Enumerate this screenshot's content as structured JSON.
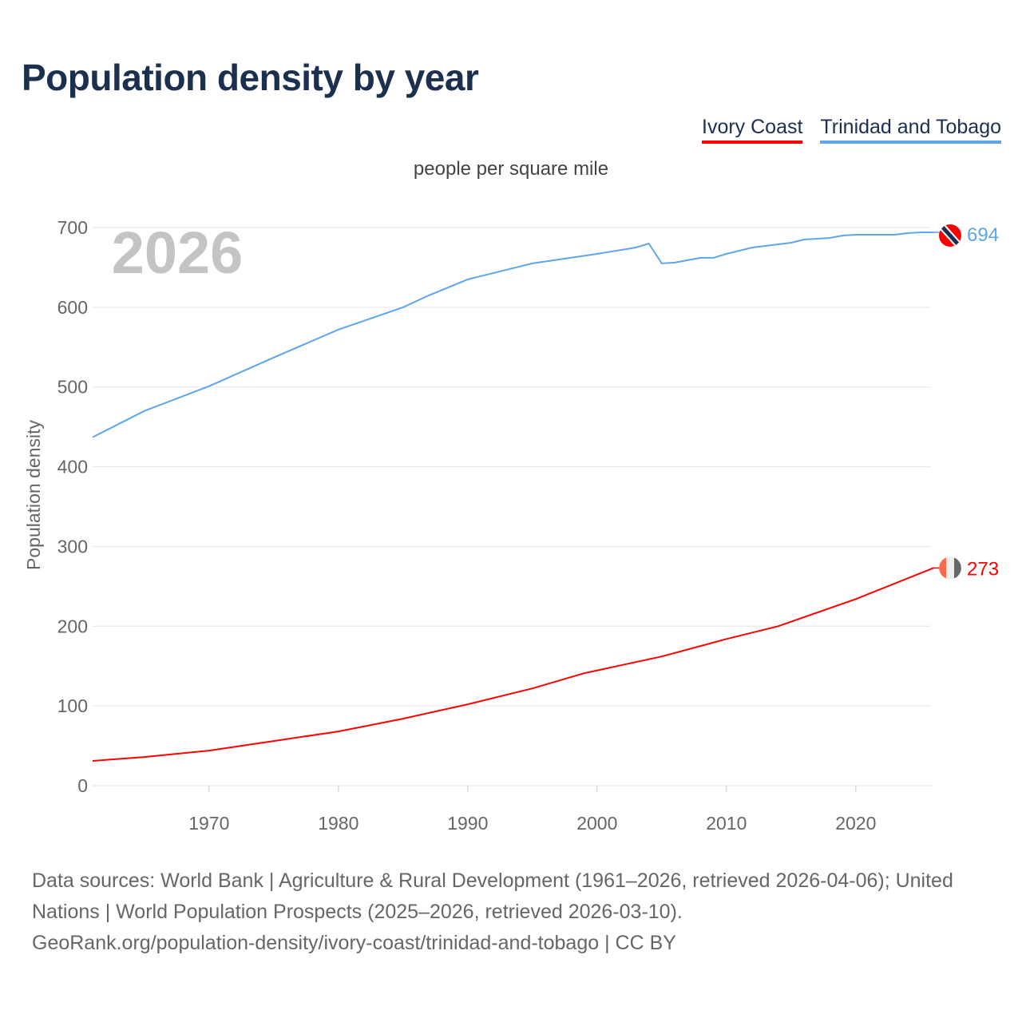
{
  "chart_data": {
    "type": "line",
    "title": "Population density by year",
    "subtitle": "people per square mile",
    "ylabel": "Population density",
    "xlabel": "",
    "year_watermark": "2026",
    "xlim": [
      1961,
      2026
    ],
    "ylim": [
      0,
      700
    ],
    "x_ticks": [
      1970,
      1980,
      1990,
      2000,
      2010,
      2020
    ],
    "y_ticks": [
      0,
      100,
      200,
      300,
      400,
      500,
      600,
      700
    ],
    "grid": true,
    "legend_position": "top-right",
    "series": [
      {
        "name": "Ivory Coast",
        "color": "#ff0000",
        "end_label": "273",
        "x": [
          1961,
          1965,
          1970,
          1975,
          1980,
          1985,
          1990,
          1995,
          1999,
          2005,
          2010,
          2013,
          2014,
          2020,
          2026
        ],
        "y": [
          31,
          36,
          44,
          56,
          68,
          84,
          102,
          122,
          141,
          162,
          184,
          196,
          200,
          234,
          273
        ]
      },
      {
        "name": "Trinidad and Tobago",
        "color": "#5ea5ea",
        "end_label": "694",
        "x": [
          1961,
          1965,
          1970,
          1975,
          1980,
          1985,
          1987,
          1990,
          1995,
          2000,
          2003,
          2004,
          2005,
          2006,
          2008,
          2009,
          2010,
          2012,
          2015,
          2016,
          2018,
          2019,
          2020,
          2023,
          2024,
          2025,
          2026
        ],
        "y": [
          437,
          470,
          501,
          537,
          572,
          600,
          615,
          635,
          655,
          667,
          675,
          680,
          655,
          656,
          662,
          662,
          667,
          675,
          681,
          685,
          687,
          690,
          691,
          691,
          693,
          694,
          694
        ]
      }
    ]
  },
  "source": {
    "line1": "Data sources: World Bank | Agriculture & Rural Development (1961–2026, retrieved 2026-04-06); United Nations | World Population Prospects (2025–2026, retrieved 2026-03-10).",
    "line2": "GeoRank.org/population-density/ivory-coast/trinidad-and-tobago | CC BY"
  }
}
